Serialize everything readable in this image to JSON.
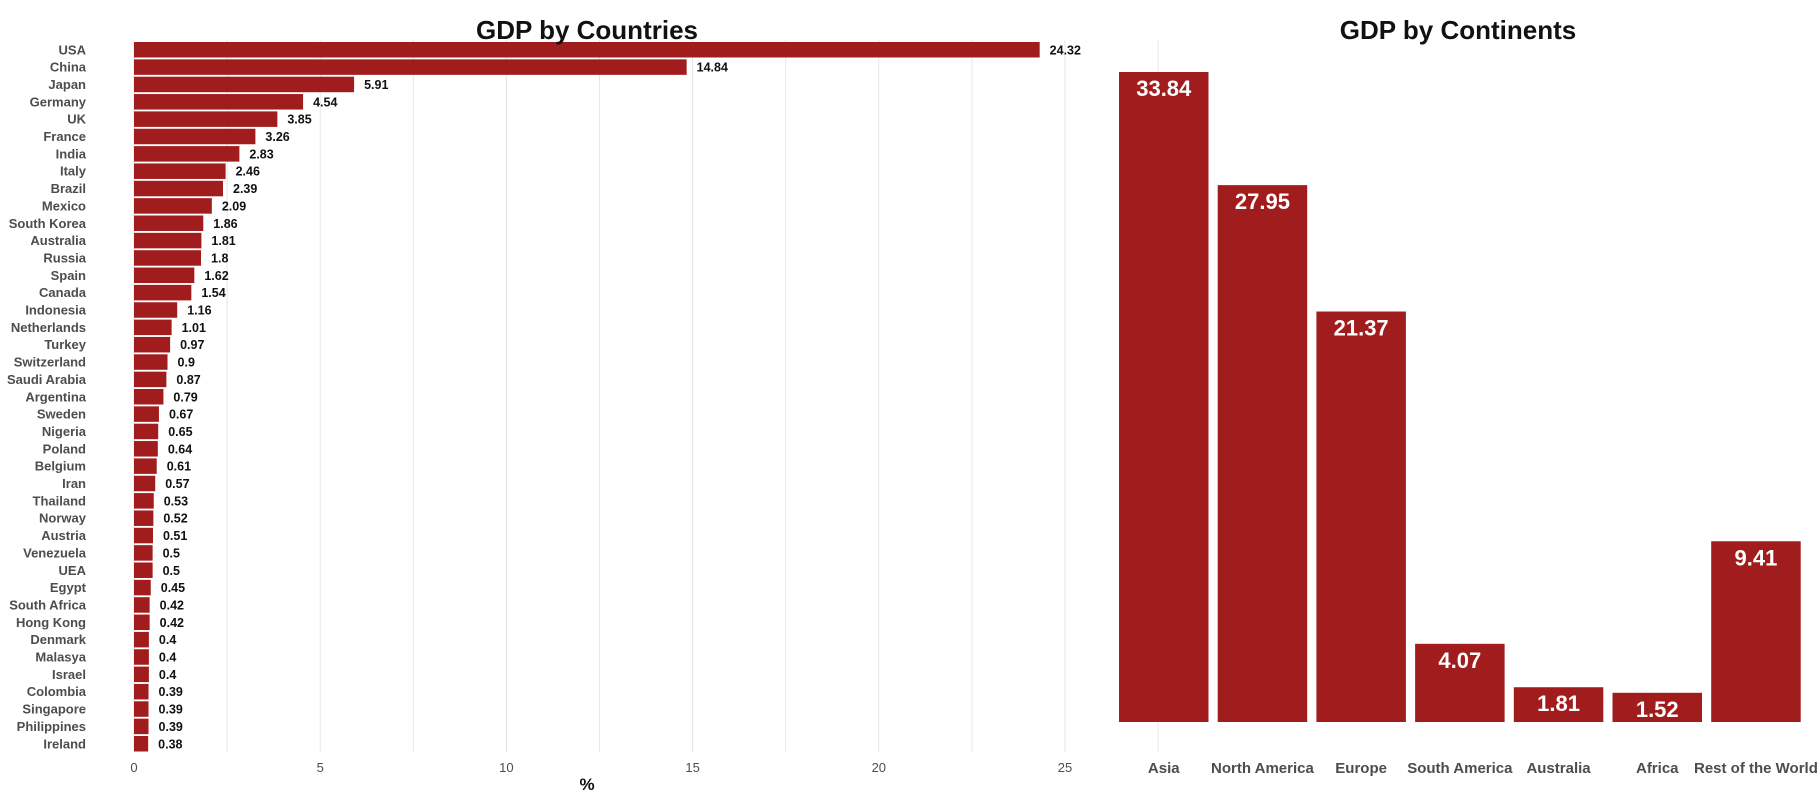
{
  "chart_data": [
    {
      "type": "bar",
      "orientation": "horizontal",
      "title": "GDP by Countries",
      "xlabel": "%",
      "ylabel": "",
      "xlim": [
        0,
        25
      ],
      "xticks": [
        "0",
        "5",
        "10",
        "15",
        "20",
        "25"
      ],
      "grid": true,
      "bar_color": "#a11d1d",
      "categories": [
        "USA",
        "China",
        "Japan",
        "Germany",
        "UK",
        "France",
        "India",
        "Italy",
        "Brazil",
        "Mexico",
        "South Korea",
        "Australia",
        "Russia",
        "Spain",
        "Canada",
        "Indonesia",
        "Netherlands",
        "Turkey",
        "Switzerland",
        "Saudi Arabia",
        "Argentina",
        "Sweden",
        "Nigeria",
        "Poland",
        "Belgium",
        "Iran",
        "Thailand",
        "Norway",
        "Austria",
        "Venezuela",
        "UEA",
        "Egypt",
        "South Africa",
        "Hong Kong",
        "Denmark",
        "Malasya",
        "Israel",
        "Colombia",
        "Singapore",
        "Philippines",
        "Ireland"
      ],
      "values": [
        24.32,
        14.84,
        5.91,
        4.54,
        3.85,
        3.26,
        2.83,
        2.46,
        2.39,
        2.09,
        1.86,
        1.81,
        1.8,
        1.62,
        1.54,
        1.16,
        1.01,
        0.97,
        0.9,
        0.87,
        0.79,
        0.67,
        0.65,
        0.64,
        0.61,
        0.57,
        0.53,
        0.52,
        0.51,
        0.5,
        0.5,
        0.45,
        0.42,
        0.42,
        0.4,
        0.4,
        0.4,
        0.39,
        0.39,
        0.39,
        0.38
      ],
      "value_labels": [
        "24.32",
        "14.84",
        "5.91",
        "4.54",
        "3.85",
        "3.26",
        "2.83",
        "2.46",
        "2.39",
        "2.09",
        "1.86",
        "1.81",
        "1.8",
        "1.62",
        "1.54",
        "1.16",
        "1.01",
        "0.97",
        "0.9",
        "0.87",
        "0.79",
        "0.67",
        "0.65",
        "0.64",
        "0.61",
        "0.57",
        "0.53",
        "0.52",
        "0.51",
        "0.5",
        "0.5",
        "0.45",
        "0.42",
        "0.42",
        "0.4",
        "0.4",
        "0.4",
        "0.39",
        "0.39",
        "0.39",
        "0.38"
      ]
    },
    {
      "type": "bar",
      "orientation": "vertical",
      "title": "GDP by Continents",
      "xlabel": "",
      "ylabel": "",
      "ylim": [
        0,
        33.84
      ],
      "grid": false,
      "bar_color": "#a11d1d",
      "categories": [
        "Asia",
        "North America",
        "Europe",
        "South America",
        "Australia",
        "Africa",
        "Rest of the World"
      ],
      "values": [
        33.84,
        27.95,
        21.37,
        4.07,
        1.81,
        1.52,
        9.41
      ],
      "value_labels": [
        "33.84",
        "27.95",
        "21.37",
        "4.07",
        "1.81",
        "1.52",
        "9.41"
      ]
    }
  ]
}
